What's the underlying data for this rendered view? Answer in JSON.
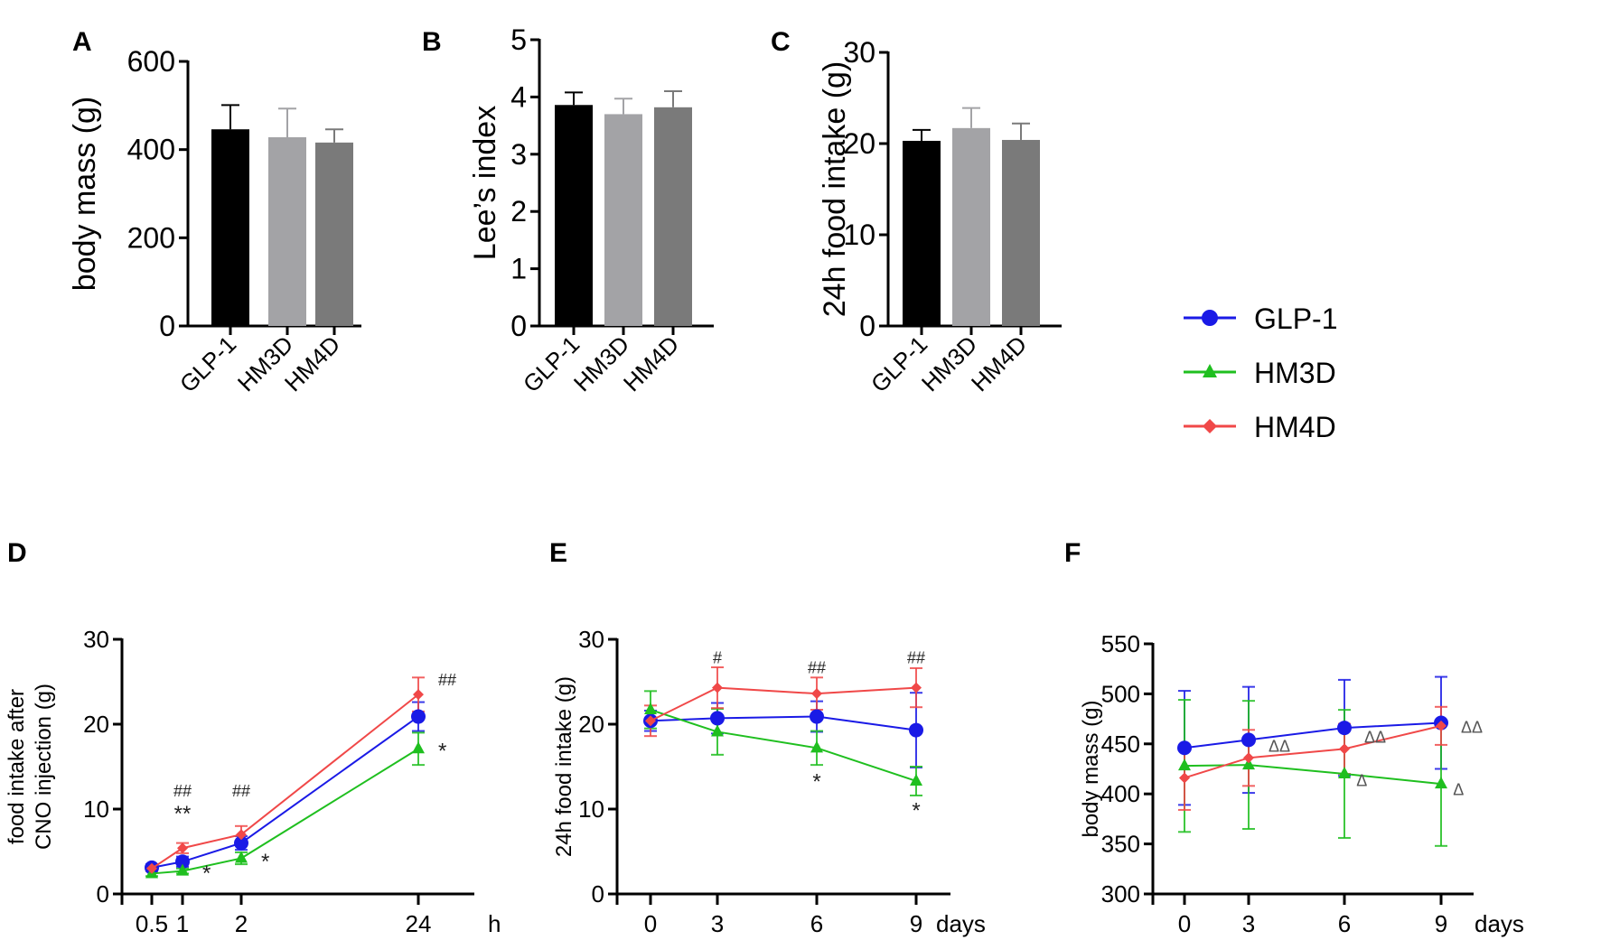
{
  "colors": {
    "GLP-1": "#1a1ae6",
    "HM3D": "#1fbf1f",
    "HM4D": "#f04848",
    "bar_GLP-1": "#000000",
    "bar_HM3D": "#a3a3a6",
    "bar_HM4D": "#7a7a7a"
  },
  "legend": {
    "entries": [
      "GLP-1",
      "HM3D",
      "HM4D"
    ],
    "placement": "right"
  },
  "chart_data": [
    {
      "id": "A",
      "panel_label": "A",
      "type": "bar",
      "categories": [
        "GLP-1",
        "HM3D",
        "HM4D"
      ],
      "values": [
        446,
        428,
        416
      ],
      "errors": [
        55,
        65,
        30
      ],
      "ylabel": "body mass (g)",
      "ylim": [
        0,
        600
      ],
      "yticks": [
        0,
        200,
        400,
        600
      ]
    },
    {
      "id": "B",
      "panel_label": "B",
      "type": "bar",
      "categories": [
        "GLP-1",
        "HM3D",
        "HM4D"
      ],
      "values": [
        3.86,
        3.7,
        3.82
      ],
      "errors": [
        0.22,
        0.27,
        0.28
      ],
      "ylabel": "Lee’s index",
      "ylim": [
        0,
        5
      ],
      "yticks": [
        0,
        1,
        2,
        3,
        4,
        5
      ]
    },
    {
      "id": "C",
      "panel_label": "C",
      "type": "bar",
      "categories": [
        "GLP-1",
        "HM3D",
        "HM4D"
      ],
      "values": [
        20.3,
        21.7,
        20.4
      ],
      "errors": [
        1.2,
        2.2,
        1.8
      ],
      "ylabel": "24h food intake (g)",
      "ylim": [
        0,
        30
      ],
      "yticks": [
        0,
        10,
        20,
        30
      ]
    },
    {
      "id": "D",
      "panel_label": "D",
      "type": "line",
      "x": [
        "0.5",
        "1",
        "2",
        "24"
      ],
      "xunit": "h",
      "ylabel": [
        "food intake after",
        "CNO injection (g)"
      ],
      "ylim": [
        0,
        30
      ],
      "yticks": [
        0,
        10,
        20,
        30
      ],
      "series": [
        {
          "name": "GLP-1",
          "values": [
            3.1,
            3.8,
            6.0,
            20.9
          ],
          "errors": [
            0.4,
            0.6,
            0.8,
            1.7
          ]
        },
        {
          "name": "HM3D",
          "values": [
            2.4,
            2.7,
            4.2,
            17.1
          ],
          "errors": [
            0.3,
            0.3,
            0.7,
            1.9
          ]
        },
        {
          "name": "HM4D",
          "values": [
            3.0,
            5.4,
            7.0,
            23.5
          ],
          "errors": [
            0.3,
            0.6,
            1.0,
            2.0
          ]
        }
      ],
      "annotations": [
        {
          "text": "##",
          "x": "1",
          "y": 11.5
        },
        {
          "text": "**",
          "x": "1",
          "y": 8.6
        },
        {
          "text": "*",
          "x": "1",
          "y": 1.6,
          "dx": 1
        },
        {
          "text": "##",
          "x": "2",
          "y": 11.5
        },
        {
          "text": "*",
          "x": "2",
          "y": 3.0,
          "dx": 1
        },
        {
          "text": "##",
          "x": "24",
          "y": 24.6,
          "dx": 1
        },
        {
          "text": "*",
          "x": "24",
          "y": 16.0,
          "dx": 1
        }
      ]
    },
    {
      "id": "E",
      "panel_label": "E",
      "type": "line",
      "x": [
        "0",
        "3",
        "6",
        "9"
      ],
      "xunit": "days",
      "ylabel": "24h food intake (g)",
      "ylim": [
        0,
        30
      ],
      "yticks": [
        0,
        10,
        20,
        30
      ],
      "series": [
        {
          "name": "GLP-1",
          "values": [
            20.4,
            20.7,
            20.9,
            19.3
          ],
          "errors": [
            1.2,
            1.8,
            1.8,
            4.4
          ]
        },
        {
          "name": "HM3D",
          "values": [
            21.7,
            19.1,
            17.2,
            13.3
          ],
          "errors": [
            2.2,
            2.7,
            2.0,
            1.7
          ]
        },
        {
          "name": "HM4D",
          "values": [
            20.4,
            24.3,
            23.6,
            24.3
          ],
          "errors": [
            1.8,
            2.4,
            1.9,
            2.3
          ]
        }
      ],
      "annotations": [
        {
          "text": "#",
          "x": "3",
          "y": 27.2
        },
        {
          "text": "##",
          "x": "6",
          "y": 26.0
        },
        {
          "text": "##",
          "x": "9",
          "y": 27.2
        },
        {
          "text": "*",
          "x": "6",
          "y": 12.4
        },
        {
          "text": "*",
          "x": "9",
          "y": 9.0
        }
      ]
    },
    {
      "id": "F",
      "panel_label": "F",
      "type": "line",
      "x": [
        "0",
        "3",
        "6",
        "9"
      ],
      "xunit": "days",
      "ylabel": "body mass (g)",
      "ylim": [
        300,
        550
      ],
      "yticks": [
        300,
        350,
        400,
        450,
        500,
        550
      ],
      "series": [
        {
          "name": "GLP-1",
          "values": [
            446,
            454,
            466,
            471
          ],
          "errors": [
            57,
            53,
            48,
            46
          ]
        },
        {
          "name": "HM3D",
          "values": [
            428,
            429,
            420,
            410
          ],
          "errors": [
            66,
            64,
            64,
            62
          ]
        },
        {
          "name": "HM4D",
          "values": [
            416,
            436,
            445,
            468
          ],
          "errors": [
            32,
            28,
            25,
            19
          ]
        }
      ],
      "annotations": [
        {
          "text": "ΔΔ",
          "x": "3",
          "y": 442,
          "dx": 1
        },
        {
          "text": "ΔΔ",
          "x": "6",
          "y": 451,
          "dx": 1
        },
        {
          "text": "ΔΔ",
          "x": "9",
          "y": 461,
          "dx": 1
        },
        {
          "text": "Δ",
          "x": "6",
          "y": 408,
          "dx": 0.6
        },
        {
          "text": "Δ",
          "x": "9",
          "y": 399,
          "dx": 0.6
        }
      ]
    }
  ]
}
